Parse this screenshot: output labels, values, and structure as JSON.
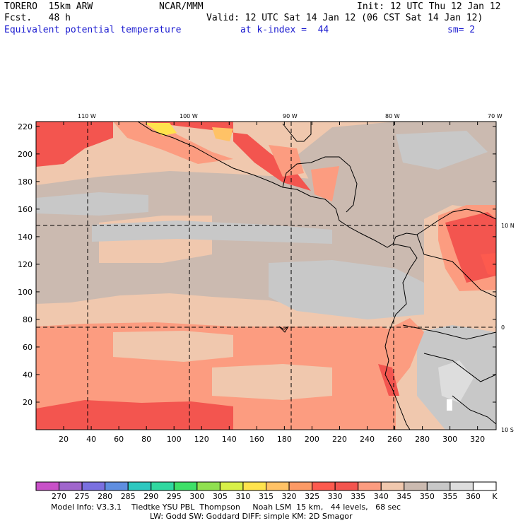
{
  "header": {
    "model": "TORERO  15km ARW",
    "center": "NCAR/MMM",
    "init": "Init: 12 UTC Thu 12 Jan 12",
    "fcst": "Fcst.   48 h",
    "valid": "Valid: 12 UTC Sat 14 Jan 12 (06 CST Sat 14 Jan 12)",
    "field": "Equivalent potential temperature",
    "level": "at k-index =  44",
    "smooth": "sm= 2"
  },
  "map": {
    "top_lon_labels": [
      "110 W",
      "100 W",
      "90 W",
      "80 W",
      "70 W"
    ],
    "right_lat_labels": [
      "10 N",
      "0",
      "10 S"
    ],
    "y_ticks": [
      "220",
      "200",
      "180",
      "160",
      "140",
      "120",
      "100",
      "80",
      "60",
      "40",
      "20"
    ],
    "x_ticks": [
      "20",
      "40",
      "60",
      "80",
      "100",
      "120",
      "140",
      "160",
      "180",
      "200",
      "220",
      "240",
      "260",
      "280",
      "300",
      "320"
    ]
  },
  "colorbar": {
    "labels": [
      "270",
      "275",
      "280",
      "285",
      "290",
      "295",
      "300",
      "305",
      "310",
      "315",
      "320",
      "325",
      "330",
      "335",
      "340",
      "345",
      "350",
      "355",
      "360",
      "K"
    ],
    "colors": [
      "#c851c8",
      "#a066cc",
      "#7a70e0",
      "#5f8ee0",
      "#2ec8c0",
      "#30d8a0",
      "#3ee068",
      "#90e050",
      "#d8f048",
      "#ffe34d",
      "#ffc266",
      "#fc9a66",
      "#fd5a4e",
      "#f3554f",
      "#fc9c80",
      "#f0c8ae",
      "#cbbab0",
      "#c8c8c8",
      "#dddddd",
      "#ffffff"
    ]
  },
  "footer": {
    "line1": "Model Info: V3.3.1    Tiedtke YSU PBL  Thompson     Noah LSM  15 km,   44 levels,   68 sec",
    "line2": "LW: Godd SW: Goddard DIFF: simple KM: 2D Smagor"
  }
}
